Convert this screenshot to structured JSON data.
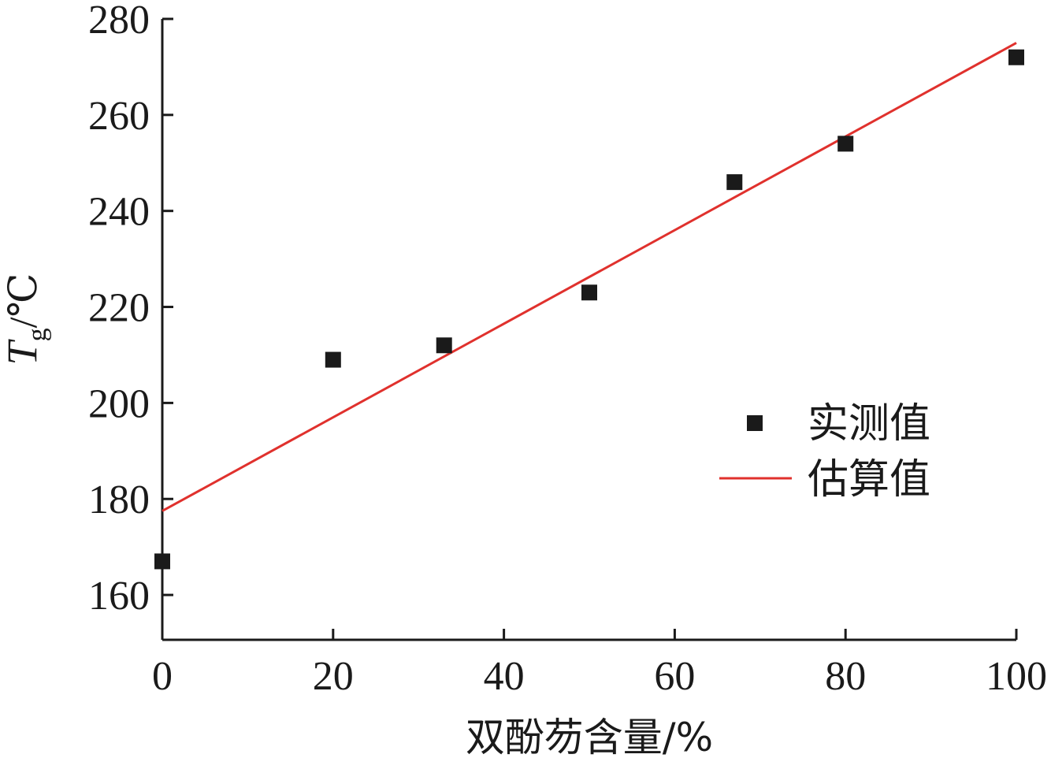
{
  "chart_data": {
    "type": "scatter",
    "xlabel": "双酚芴含量/%",
    "ylabel": {
      "symbol": "T",
      "subscript": "g",
      "unit": "/℃"
    },
    "xlim": [
      0,
      100
    ],
    "ylim": [
      150,
      280
    ],
    "xticks": [
      0,
      20,
      40,
      60,
      80,
      100
    ],
    "yticks": [
      160,
      180,
      200,
      220,
      240,
      260,
      280
    ],
    "xtick_labels": [
      "0",
      "20",
      "40",
      "60",
      "80",
      "100"
    ],
    "ytick_labels": [
      "160",
      "180",
      "200",
      "220",
      "240",
      "260",
      "280"
    ],
    "grid": false,
    "legend_position": "right-middle",
    "series": [
      {
        "name": "实测值",
        "kind": "markers",
        "color": "#1a1a1a",
        "x": [
          0,
          20,
          33,
          50,
          67,
          80,
          100
        ],
        "y": [
          167,
          209,
          212,
          223,
          246,
          254,
          272
        ]
      },
      {
        "name": "估算值",
        "kind": "line",
        "color": "#e0312d",
        "x": [
          0,
          100
        ],
        "y": [
          177.5,
          275
        ]
      }
    ]
  }
}
